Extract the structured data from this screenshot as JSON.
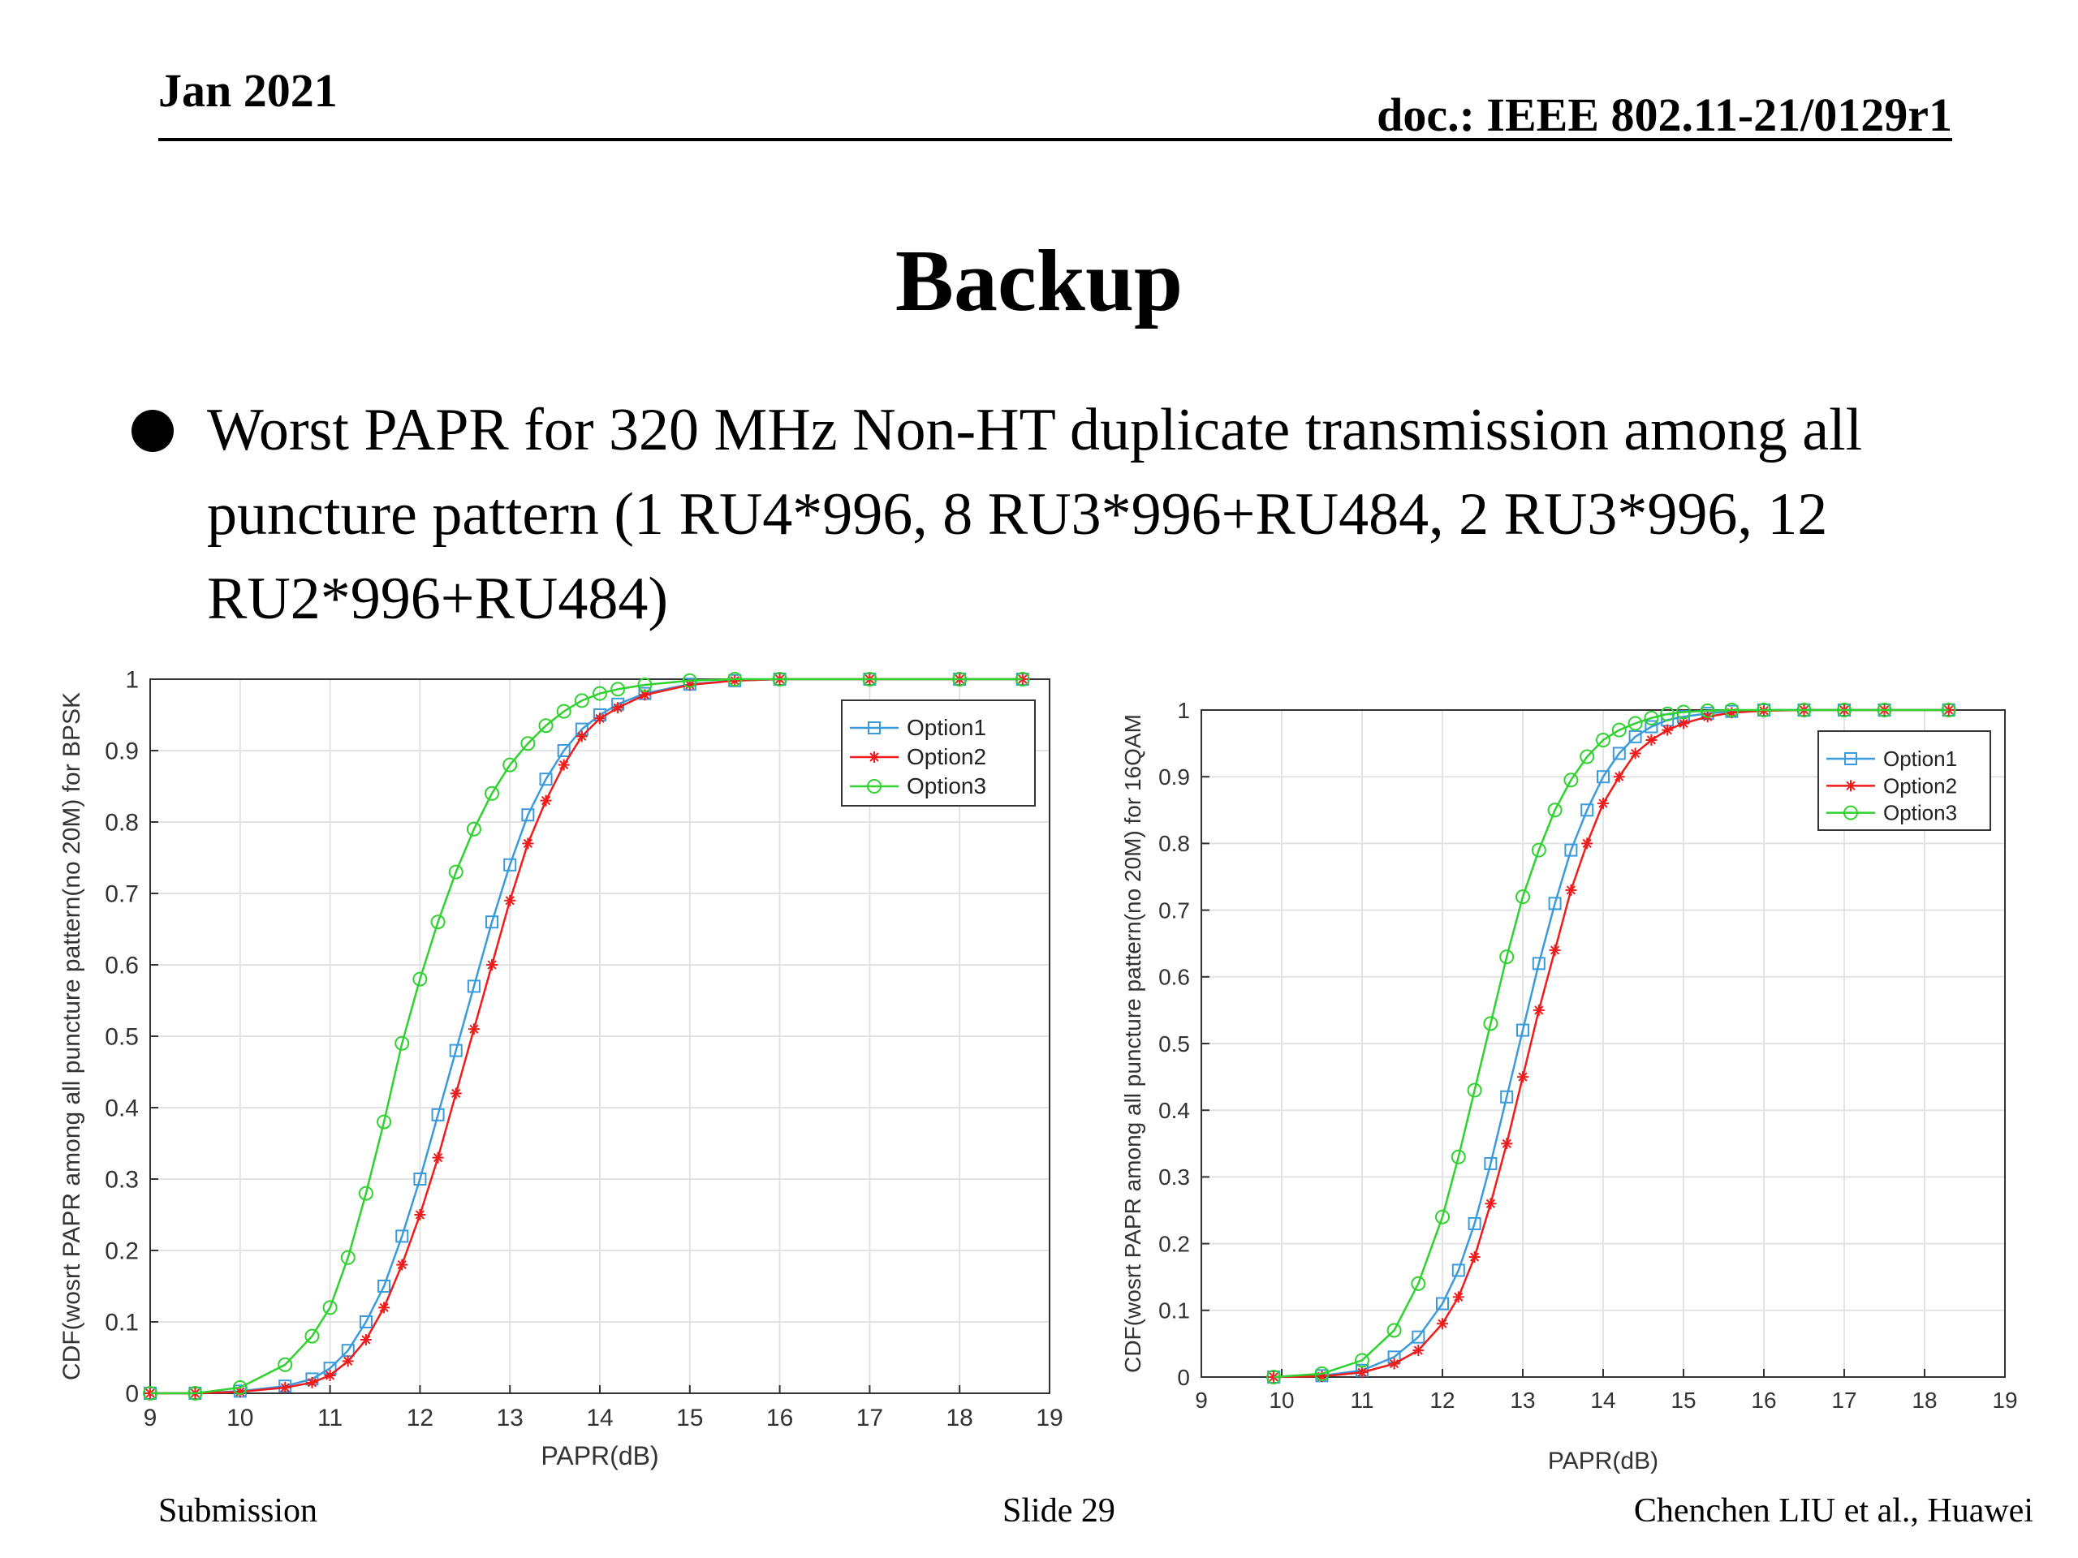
{
  "header": {
    "date": "Jan 2021",
    "doc": "doc.: IEEE 802.11-21/0129r1"
  },
  "title": "Backup",
  "bullet": "Worst PAPR for 320 MHz Non-HT duplicate transmission among all puncture pattern (1 RU4*996, 8 RU3*996+RU484, 2 RU3*996, 12 RU2*996+RU484)",
  "footer": {
    "left": "Submission",
    "center": "Slide 29",
    "right": "Chenchen LIU et al., Huawei"
  },
  "colors": {
    "option1": "#3a9bdc",
    "option2": "#ee1c1c",
    "option3": "#2fd22f"
  },
  "chart_data": [
    {
      "type": "line",
      "xlabel": "PAPR(dB)",
      "ylabel": "CDF(wosrt PAPR among all puncture pattern(no 20M) for BPSK",
      "xlim": [
        9,
        19
      ],
      "ylim": [
        0,
        1
      ],
      "xticks": [
        9,
        10,
        11,
        12,
        13,
        14,
        15,
        16,
        17,
        18,
        19
      ],
      "yticks": [
        0,
        0.1,
        0.2,
        0.3,
        0.4,
        0.5,
        0.6,
        0.7,
        0.8,
        0.9,
        1
      ],
      "grid": true,
      "legend": "top-right",
      "x": [
        9.0,
        9.5,
        10.0,
        10.5,
        10.8,
        11.0,
        11.2,
        11.4,
        11.6,
        11.8,
        12.0,
        12.2,
        12.4,
        12.6,
        12.8,
        13.0,
        13.2,
        13.4,
        13.6,
        13.8,
        14.0,
        14.2,
        14.5,
        15.0,
        15.5,
        16.0,
        17.0,
        18.0,
        18.7
      ],
      "series": [
        {
          "name": "Option1",
          "marker": "square",
          "values": [
            0,
            0,
            0.003,
            0.01,
            0.02,
            0.035,
            0.06,
            0.1,
            0.15,
            0.22,
            0.3,
            0.39,
            0.48,
            0.57,
            0.66,
            0.74,
            0.81,
            0.86,
            0.9,
            0.93,
            0.95,
            0.965,
            0.98,
            0.993,
            0.998,
            1,
            1,
            1,
            1
          ]
        },
        {
          "name": "Option2",
          "marker": "asterisk",
          "values": [
            0,
            0,
            0.002,
            0.008,
            0.015,
            0.025,
            0.045,
            0.075,
            0.12,
            0.18,
            0.25,
            0.33,
            0.42,
            0.51,
            0.6,
            0.69,
            0.77,
            0.83,
            0.88,
            0.92,
            0.945,
            0.96,
            0.978,
            0.992,
            0.998,
            1,
            1,
            1,
            1
          ]
        },
        {
          "name": "Option3",
          "marker": "circle",
          "values": [
            0,
            0,
            0.008,
            0.04,
            0.08,
            0.12,
            0.19,
            0.28,
            0.38,
            0.49,
            0.58,
            0.66,
            0.73,
            0.79,
            0.84,
            0.88,
            0.91,
            0.935,
            0.955,
            0.97,
            0.98,
            0.986,
            0.992,
            0.998,
            1,
            1,
            1,
            1,
            1
          ]
        }
      ]
    },
    {
      "type": "line",
      "xlabel": "PAPR(dB)",
      "ylabel": "CDF(wosrt PAPR among all puncture pattern(no 20M) for 16QAM",
      "xlim": [
        9,
        19
      ],
      "ylim": [
        0,
        1
      ],
      "xticks": [
        9,
        10,
        11,
        12,
        13,
        14,
        15,
        16,
        17,
        18,
        19
      ],
      "yticks": [
        0,
        0.1,
        0.2,
        0.3,
        0.4,
        0.5,
        0.6,
        0.7,
        0.8,
        0.9,
        1
      ],
      "grid": true,
      "legend": "top-right",
      "x": [
        9.9,
        10.5,
        11.0,
        11.4,
        11.7,
        12.0,
        12.2,
        12.4,
        12.6,
        12.8,
        13.0,
        13.2,
        13.4,
        13.6,
        13.8,
        14.0,
        14.2,
        14.4,
        14.6,
        14.8,
        15.0,
        15.3,
        15.6,
        16.0,
        16.5,
        17.0,
        17.5,
        18.3
      ],
      "series": [
        {
          "name": "Option1",
          "marker": "square",
          "values": [
            0,
            0.002,
            0.01,
            0.03,
            0.06,
            0.11,
            0.16,
            0.23,
            0.32,
            0.42,
            0.52,
            0.62,
            0.71,
            0.79,
            0.85,
            0.9,
            0.935,
            0.96,
            0.975,
            0.985,
            0.99,
            0.995,
            0.998,
            1,
            1,
            1,
            1,
            1
          ]
        },
        {
          "name": "Option2",
          "marker": "asterisk",
          "values": [
            0,
            0.001,
            0.007,
            0.02,
            0.04,
            0.08,
            0.12,
            0.18,
            0.26,
            0.35,
            0.45,
            0.55,
            0.64,
            0.73,
            0.8,
            0.86,
            0.9,
            0.935,
            0.955,
            0.97,
            0.98,
            0.99,
            0.996,
            0.999,
            1,
            1,
            1,
            1
          ]
        },
        {
          "name": "Option3",
          "marker": "circle",
          "values": [
            0,
            0.005,
            0.025,
            0.07,
            0.14,
            0.24,
            0.33,
            0.43,
            0.53,
            0.63,
            0.72,
            0.79,
            0.85,
            0.895,
            0.93,
            0.955,
            0.97,
            0.98,
            0.988,
            0.994,
            0.997,
            0.999,
            1,
            1,
            1,
            1,
            1,
            1
          ]
        }
      ]
    }
  ]
}
